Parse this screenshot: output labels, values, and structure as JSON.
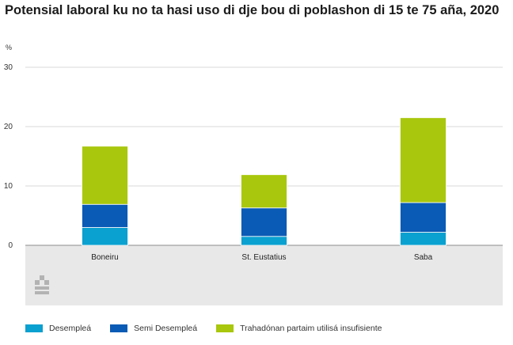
{
  "title": "Potensial laboral ku no ta hasi uso di dje bou di poblashon di 15 te 75 aña, 2020",
  "unit": "%",
  "chart_data": {
    "type": "bar",
    "stacked": true,
    "categories": [
      "Boneiru",
      "St. Eustatius",
      "Saba"
    ],
    "series": [
      {
        "name": "Desempleá",
        "color": "#0aa0d0",
        "values": [
          3.0,
          1.5,
          2.2
        ]
      },
      {
        "name": "Semi Desempleá",
        "color": "#0a5bb5",
        "values": [
          3.9,
          4.8,
          5.0
        ]
      },
      {
        "name": "Trahadónan partaim utilisá insufisiente",
        "color": "#a9c70d",
        "values": [
          9.8,
          5.6,
          14.3
        ]
      }
    ],
    "ylim": [
      0,
      30
    ],
    "yticks": [
      0,
      10,
      20,
      30
    ],
    "grid": true,
    "legend_position": "bottom",
    "xlabel": "",
    "ylabel": ""
  }
}
